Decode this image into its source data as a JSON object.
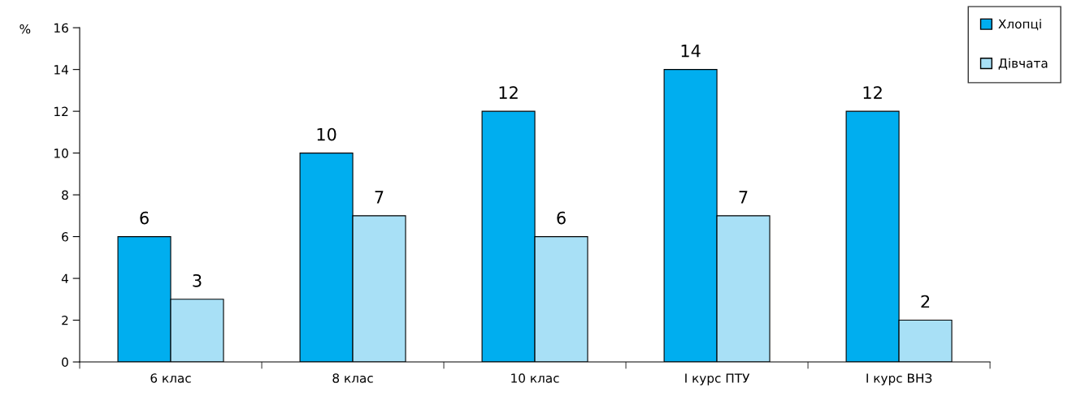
{
  "chart_data": {
    "type": "bar",
    "ylabel": "%",
    "categories": [
      "6 клас",
      "8 клас",
      "10 клас",
      "І курс ПТУ",
      "І курс ВНЗ"
    ],
    "series": [
      {
        "name": "Хлопці",
        "color": "#00aeef",
        "values": [
          6,
          10,
          12,
          14,
          12
        ]
      },
      {
        "name": "Дівчата",
        "color": "#a8e0f6",
        "values": [
          3,
          7,
          6,
          7,
          2
        ]
      }
    ],
    "ylim": [
      0,
      16
    ],
    "yticks": [
      0,
      2,
      4,
      6,
      8,
      10,
      12,
      14,
      16
    ],
    "data_labels": true,
    "grid": false,
    "legend": "top right"
  }
}
